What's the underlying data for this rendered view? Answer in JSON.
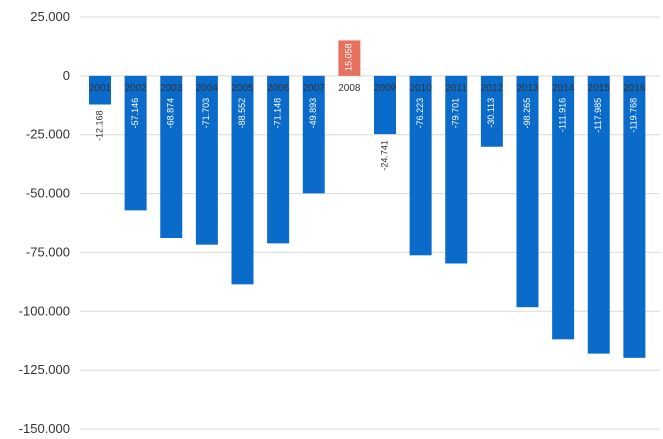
{
  "chart_data": {
    "type": "bar",
    "categories": [
      "2001",
      "2002",
      "2003",
      "2004",
      "2005",
      "2006",
      "2007",
      "2008",
      "2009",
      "2010",
      "2011",
      "2012",
      "2013",
      "2014",
      "2015",
      "2016"
    ],
    "values": [
      -12168,
      -57146,
      -68874,
      -71703,
      -88552,
      -71148,
      -49893,
      15058,
      -24741,
      -76223,
      -79701,
      -30113,
      -98265,
      -111916,
      -117985,
      -119768
    ],
    "value_labels": [
      "-12.168",
      "-57.146",
      "-68.874",
      "-71.703",
      "-88.552",
      "-71.148",
      "-49.893",
      "15.058",
      "-24.741",
      "-76.223",
      "-79.701",
      "-30.113",
      "-98.265",
      "-111.916",
      "-117.985",
      "-119.768"
    ],
    "yticks": [
      25000,
      0,
      -25000,
      -50000,
      -75000,
      -100000,
      -125000,
      -150000
    ],
    "ytick_labels": [
      "25.000",
      "0",
      "-25.000",
      "-50.000",
      "-75.000",
      "-100.000",
      "-125.000",
      "-150.000"
    ],
    "ylim": [
      -150000,
      25000
    ],
    "title": "",
    "xlabel": "",
    "ylabel": "",
    "grid": true,
    "legend": "none",
    "colors": {
      "negative": "#0b6bcb",
      "positive": "#e8705f",
      "gridline": "#d9d9d9"
    }
  }
}
